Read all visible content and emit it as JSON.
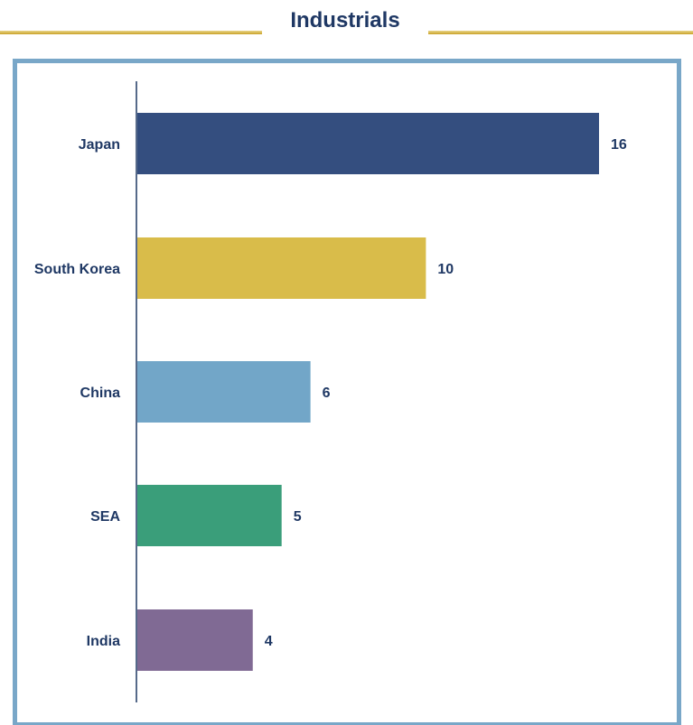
{
  "header": {
    "title": "Industrials"
  },
  "colors": {
    "accent_rule": "#c9a227",
    "frame": "#79a7c8",
    "text": "#1f3864",
    "axis": "#1f3864"
  },
  "chart_data": {
    "type": "bar",
    "orientation": "horizontal",
    "title": "Industrials",
    "xlabel": "",
    "ylabel": "",
    "categories": [
      "Japan",
      "South Korea",
      "China",
      "SEA",
      "India"
    ],
    "values": [
      16,
      10,
      6,
      5,
      4
    ],
    "bar_colors": [
      "#344e7f",
      "#d9bc4a",
      "#72a6c8",
      "#3a9e7a",
      "#806a94"
    ],
    "data_labels": [
      "16",
      "10",
      "6",
      "5",
      "4"
    ],
    "xlim": [
      0,
      18
    ],
    "grid": false,
    "legend": "none"
  }
}
